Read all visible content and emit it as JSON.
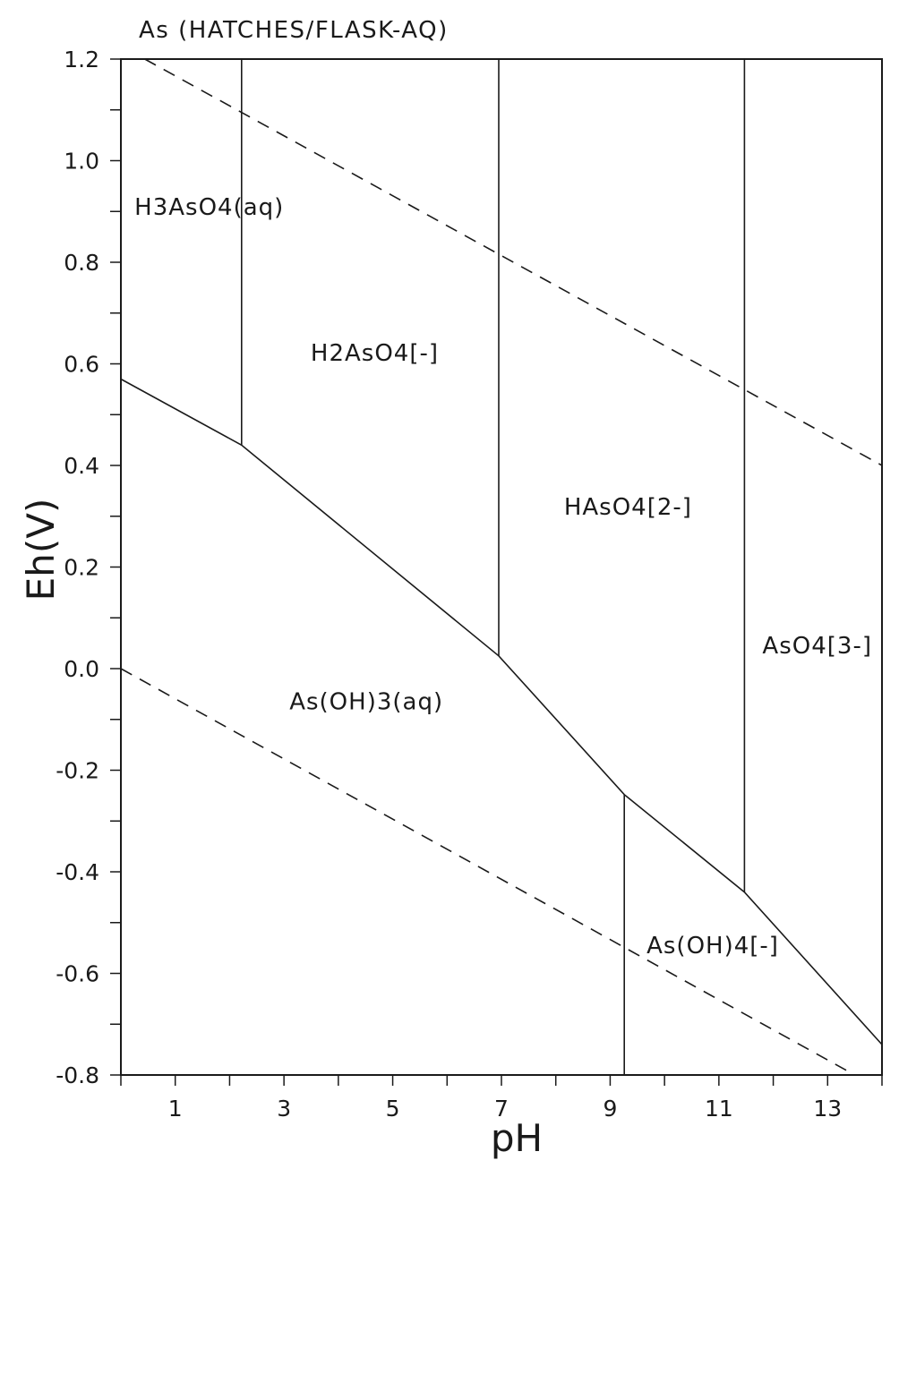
{
  "chart_data": {
    "type": "line",
    "title": "As (HATCHES/FLASK-AQ)",
    "xlabel": "pH",
    "ylabel": "Eh(V)",
    "xlim": [
      0,
      14
    ],
    "ylim": [
      -0.8,
      1.2
    ],
    "x_tick_labels": [
      "1",
      "3",
      "5",
      "7",
      "9",
      "11",
      "13"
    ],
    "x_minor_ticks": [
      1,
      2,
      3,
      4,
      5,
      6,
      7,
      8,
      9,
      10,
      11,
      12,
      13
    ],
    "y_tick_labels": [
      "1.2",
      "1.0",
      "0.8",
      "0.6",
      "0.4",
      "0.2",
      "0.0",
      "-0.2",
      "-0.4",
      "-0.6",
      "-0.8"
    ],
    "y_minor_step": 0.1,
    "grid": false,
    "series": [
      {
        "style": "dashed",
        "x": [
          0.44,
          14
        ],
        "y": [
          1.2,
          0.4
        ]
      },
      {
        "style": "dashed",
        "x": [
          0,
          13.5
        ],
        "y": [
          0.0,
          -0.8
        ]
      },
      {
        "style": "solid",
        "x": [
          0,
          2.22,
          6.95,
          9.26,
          11.47,
          14
        ],
        "y": [
          0.57,
          0.44,
          0.025,
          -0.248,
          -0.44,
          -0.74
        ]
      },
      {
        "style": "solid",
        "x": [
          2.22,
          2.22
        ],
        "y": [
          0.44,
          1.2
        ]
      },
      {
        "style": "solid",
        "x": [
          6.95,
          6.95
        ],
        "y": [
          0.025,
          1.2
        ]
      },
      {
        "style": "solid",
        "x": [
          9.26,
          9.26
        ],
        "y": [
          -0.248,
          -0.8
        ]
      },
      {
        "style": "solid",
        "x": [
          11.47,
          11.47
        ],
        "y": [
          -0.44,
          1.2
        ]
      }
    ],
    "annotations": [
      {
        "text": "H3AsO4(aq)",
        "at": [
          0.25,
          0.893
        ]
      },
      {
        "text": "H2AsO4[-]",
        "at": [
          3.49,
          0.606
        ]
      },
      {
        "text": "HAsO4[2-]",
        "at": [
          8.15,
          0.303
        ]
      },
      {
        "text": "AsO4[3-]",
        "at": [
          11.8,
          0.03
        ]
      },
      {
        "text": "As(OH)3(aq)",
        "at": [
          3.1,
          -0.08
        ]
      },
      {
        "text": "As(OH)4[-]",
        "at": [
          9.67,
          -0.56
        ]
      }
    ],
    "colors": {
      "line": "#1a1a1a",
      "background": "#ffffff"
    }
  }
}
